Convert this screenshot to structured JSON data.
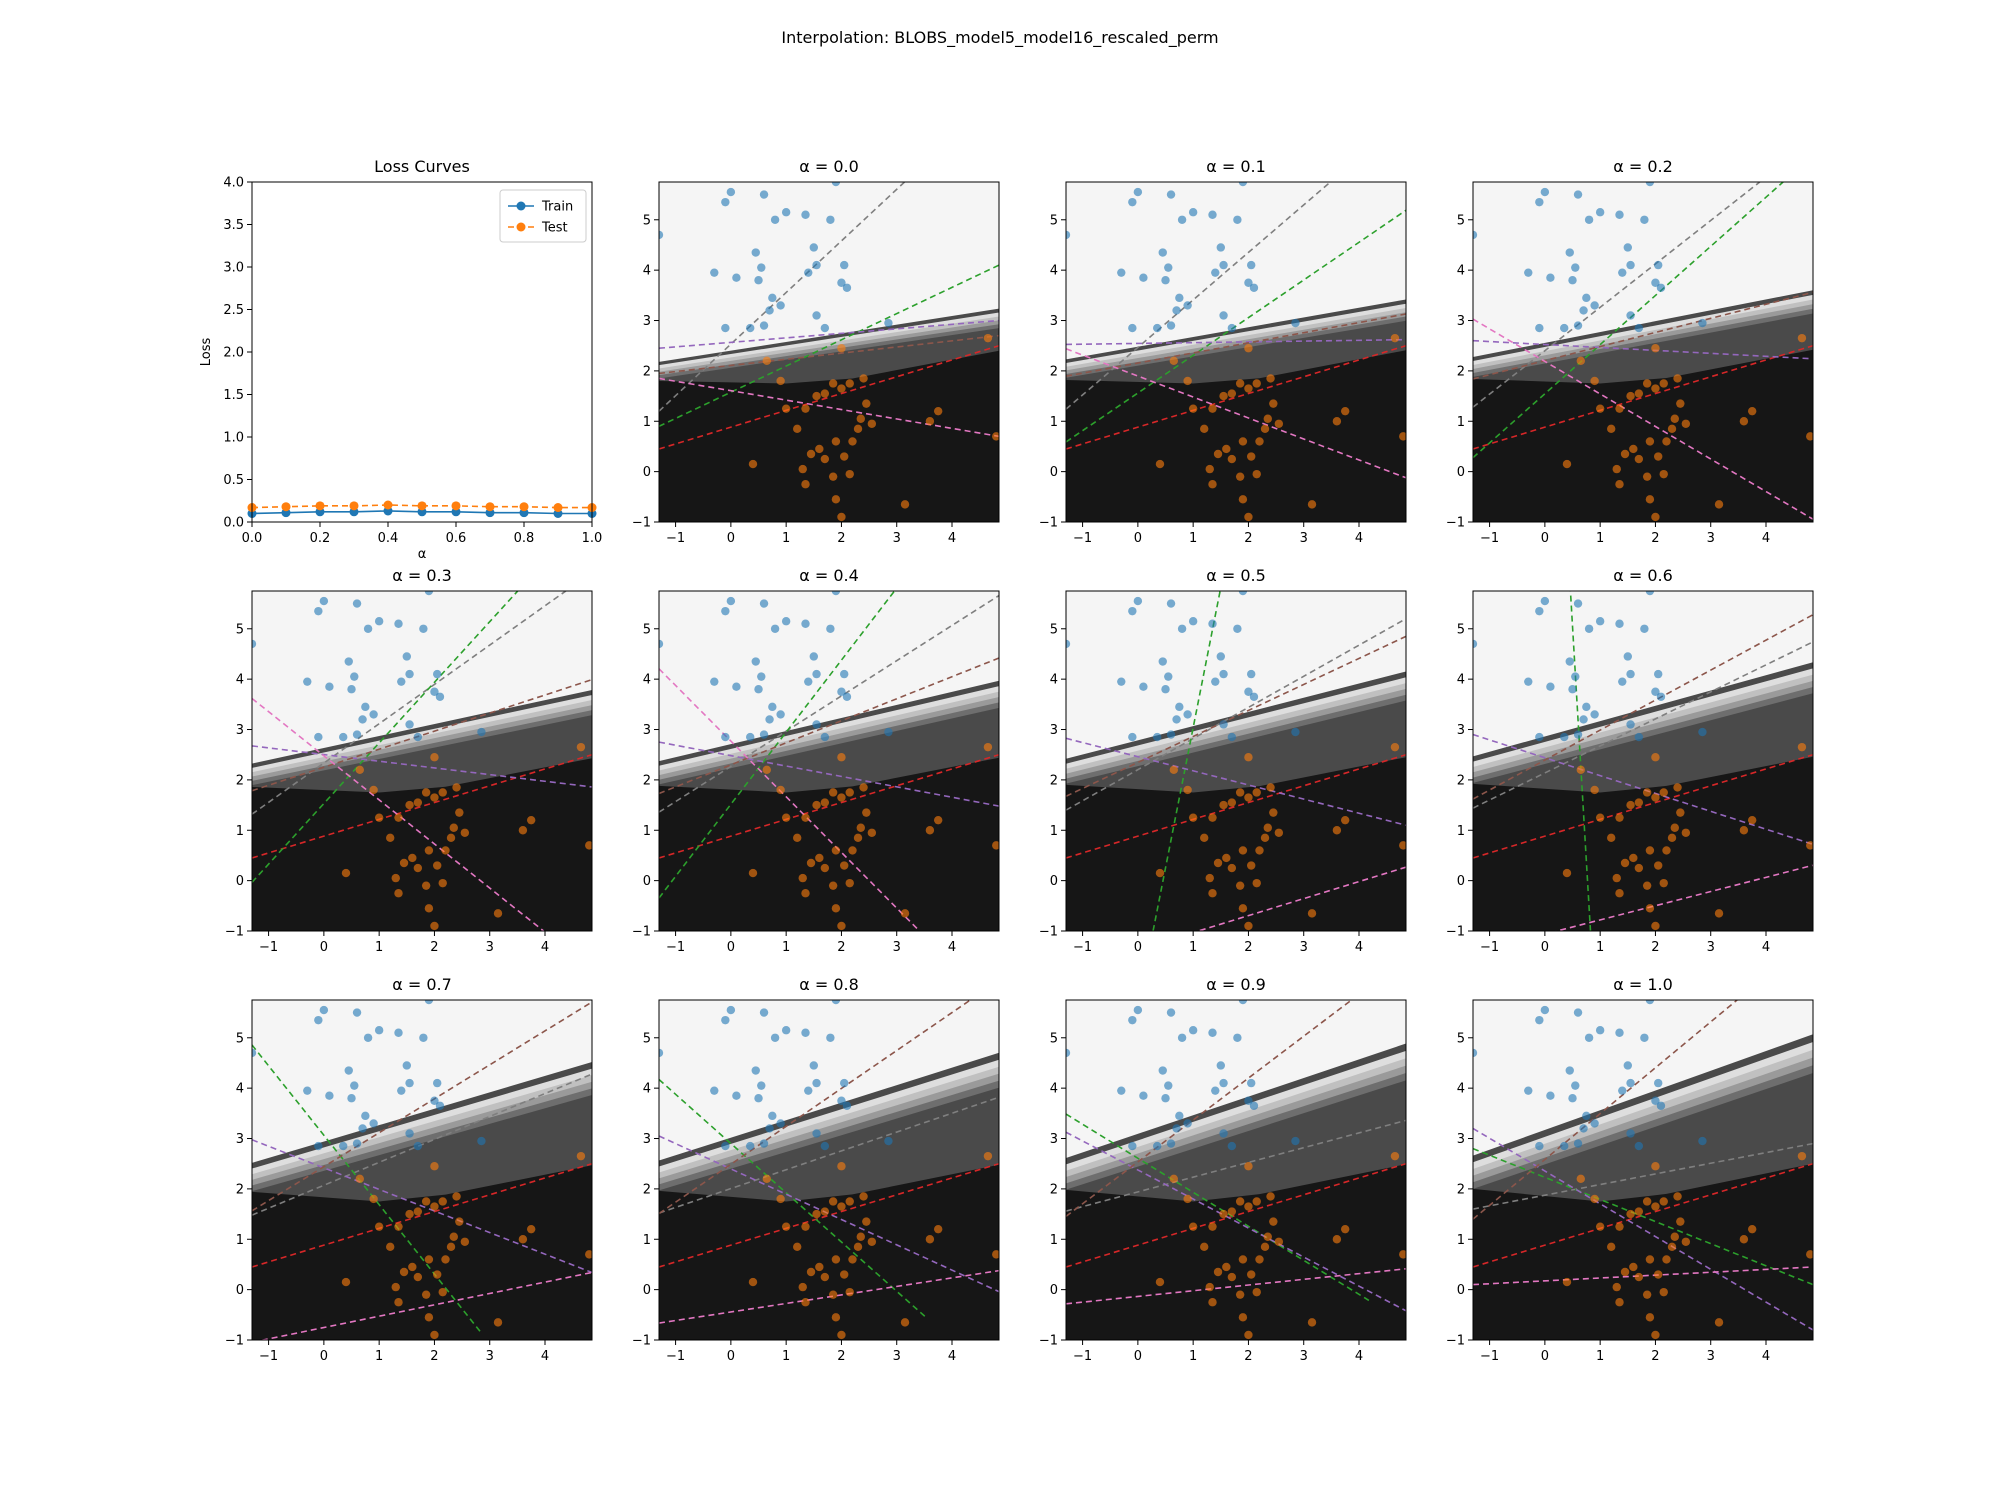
{
  "figure": {
    "title": "Interpolation: BLOBS_model5_model16_rescaled_perm"
  },
  "colors": {
    "train": "#1f77b4",
    "test": "#ff7f0e",
    "blue_points": "#1f77b4",
    "orange_points": "#ff7f0e",
    "line_gray": "#7f7f7f",
    "line_green": "#2ca02c",
    "line_purple": "#9467bd",
    "line_brown": "#8c564b",
    "line_pink": "#e377c2",
    "line_red": "#d62728",
    "region_dark": "#161616",
    "region_light": "#f5f5f5"
  },
  "chart_data": [
    {
      "type": "line",
      "title": "Loss Curves",
      "xlabel": "α",
      "ylabel": "Loss",
      "xlim": [
        0,
        1
      ],
      "ylim": [
        0,
        4
      ],
      "xticks": [
        0.0,
        0.2,
        0.4,
        0.6,
        0.8,
        1.0
      ],
      "yticks": [
        0.0,
        0.5,
        1.0,
        1.5,
        2.0,
        2.5,
        3.0,
        3.5,
        4.0
      ],
      "legend": "top-right",
      "x": [
        0.0,
        0.1,
        0.2,
        0.3,
        0.4,
        0.5,
        0.6,
        0.7,
        0.8,
        0.9,
        1.0
      ],
      "series": [
        {
          "name": "Train",
          "style": "solid",
          "values": [
            0.1,
            0.11,
            0.12,
            0.12,
            0.13,
            0.12,
            0.12,
            0.11,
            0.11,
            0.1,
            0.1
          ]
        },
        {
          "name": "Test",
          "style": "dashed",
          "values": [
            0.17,
            0.18,
            0.19,
            0.19,
            0.2,
            0.19,
            0.19,
            0.18,
            0.18,
            0.17,
            0.17
          ]
        }
      ]
    },
    {
      "type": "scatter",
      "panel_titles": [
        "α = 0.0",
        "α = 0.1",
        "α = 0.2",
        "α = 0.3",
        "α = 0.4",
        "α = 0.5",
        "α = 0.6",
        "α = 0.7",
        "α = 0.8",
        "α = 0.9",
        "α = 1.0"
      ],
      "alphas": [
        0.0,
        0.1,
        0.2,
        0.3,
        0.4,
        0.5,
        0.6,
        0.7,
        0.8,
        0.9,
        1.0
      ],
      "xlim": [
        -1.3,
        4.85
      ],
      "ylim": [
        -1,
        5.75
      ],
      "xticks": [
        -1,
        0,
        1,
        2,
        3,
        4
      ],
      "yticks": [
        -1,
        0,
        1,
        2,
        3,
        4,
        5
      ],
      "class_a_points": [
        [
          -1.3,
          4.7
        ],
        [
          -0.1,
          5.35
        ],
        [
          0.0,
          5.55
        ],
        [
          -0.3,
          3.95
        ],
        [
          0.1,
          3.85
        ],
        [
          0.5,
          3.8
        ],
        [
          0.45,
          4.35
        ],
        [
          0.55,
          4.05
        ],
        [
          0.8,
          5.0
        ],
        [
          0.6,
          5.5
        ],
        [
          1.0,
          5.15
        ],
        [
          1.35,
          5.1
        ],
        [
          0.75,
          3.45
        ],
        [
          0.7,
          3.2
        ],
        [
          0.9,
          3.3
        ],
        [
          1.4,
          3.95
        ],
        [
          1.55,
          4.1
        ],
        [
          1.5,
          4.45
        ],
        [
          1.8,
          5.0
        ],
        [
          1.9,
          5.75
        ],
        [
          1.55,
          3.1
        ],
        [
          1.7,
          2.85
        ],
        [
          2.0,
          3.75
        ],
        [
          2.1,
          3.65
        ],
        [
          2.05,
          4.1
        ],
        [
          0.35,
          2.85
        ],
        [
          0.6,
          2.9
        ],
        [
          2.85,
          2.95
        ],
        [
          -0.1,
          2.85
        ]
      ],
      "class_b_points": [
        [
          0.65,
          2.2
        ],
        [
          0.9,
          1.8
        ],
        [
          1.0,
          1.25
        ],
        [
          1.2,
          0.85
        ],
        [
          1.35,
          1.25
        ],
        [
          1.55,
          1.5
        ],
        [
          1.7,
          1.55
        ],
        [
          1.85,
          1.75
        ],
        [
          2.0,
          1.65
        ],
        [
          2.15,
          1.75
        ],
        [
          2.4,
          1.85
        ],
        [
          2.45,
          1.35
        ],
        [
          2.55,
          0.95
        ],
        [
          2.3,
          0.85
        ],
        [
          2.2,
          0.6
        ],
        [
          1.9,
          0.6
        ],
        [
          1.6,
          0.45
        ],
        [
          1.45,
          0.35
        ],
        [
          1.3,
          0.05
        ],
        [
          1.35,
          -0.25
        ],
        [
          1.7,
          0.25
        ],
        [
          1.85,
          -0.1
        ],
        [
          2.05,
          0.3
        ],
        [
          1.9,
          -0.55
        ],
        [
          2.0,
          -0.9
        ],
        [
          2.15,
          -0.05
        ],
        [
          0.4,
          0.15
        ],
        [
          3.15,
          -0.65
        ],
        [
          3.6,
          1.0
        ],
        [
          3.75,
          1.2
        ],
        [
          4.8,
          0.7
        ],
        [
          4.65,
          2.65
        ],
        [
          2.0,
          2.45
        ],
        [
          2.35,
          1.05
        ]
      ],
      "region_levels": [
        "#161616",
        "#4a4a4a",
        "#6e6e6e",
        "#9a9a9a",
        "#c0c0c0",
        "#dedede",
        "#f5f5f5"
      ]
    }
  ]
}
